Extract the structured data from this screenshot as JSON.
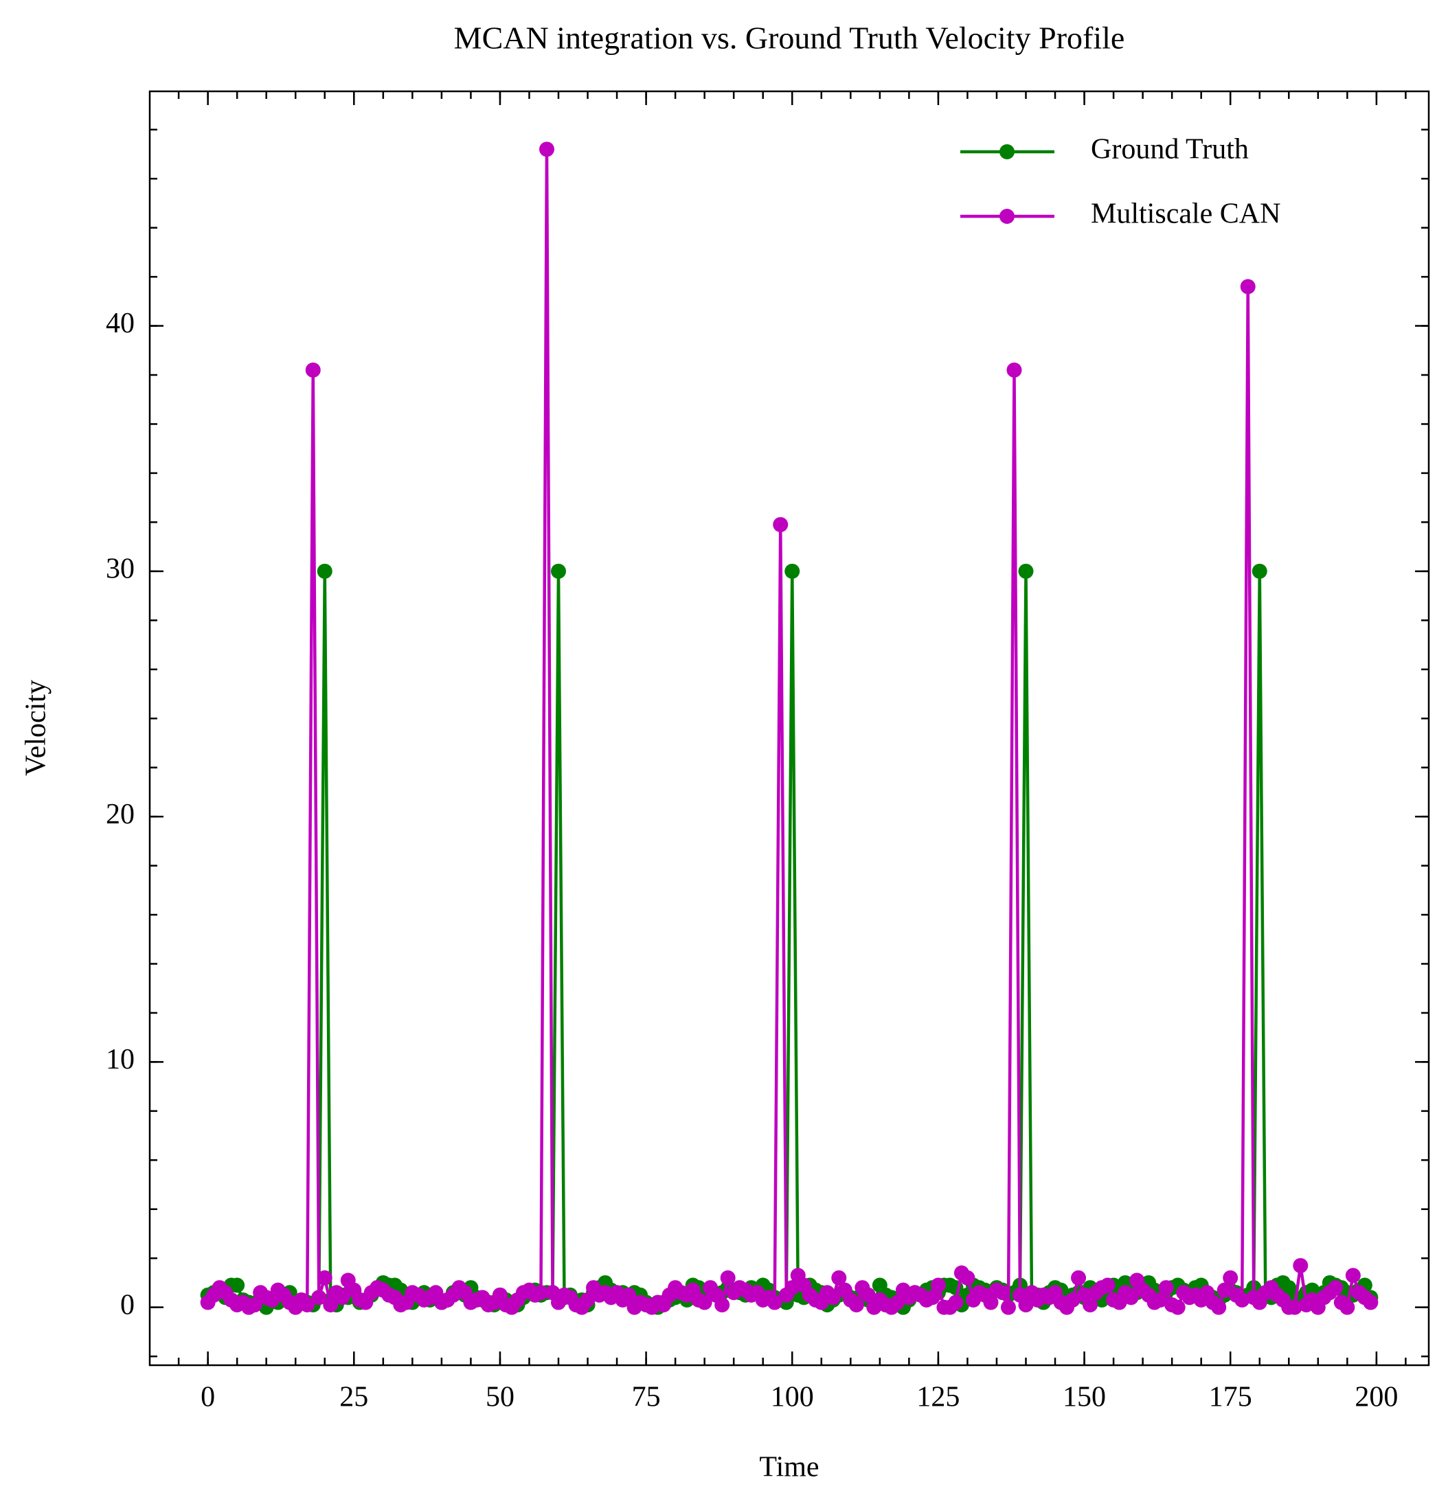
{
  "chart_data": {
    "type": "line",
    "title": "MCAN integration vs. Ground Truth Velocity Profile",
    "xlabel": "Time",
    "ylabel": "Velocity",
    "xlim": [
      -9.95,
      208.95
    ],
    "ylim": [
      -2.36,
      49.56
    ],
    "xticks": [
      0,
      25,
      50,
      75,
      100,
      125,
      150,
      175,
      200
    ],
    "yticks": [
      0,
      10,
      20,
      30,
      40
    ],
    "legend": "upper right",
    "x": [
      0,
      1,
      2,
      3,
      4,
      5,
      6,
      7,
      8,
      9,
      10,
      11,
      12,
      13,
      14,
      15,
      16,
      17,
      18,
      19,
      20,
      21,
      22,
      23,
      24,
      25,
      26,
      27,
      28,
      29,
      30,
      31,
      32,
      33,
      34,
      35,
      36,
      37,
      38,
      39,
      40,
      41,
      42,
      43,
      44,
      45,
      46,
      47,
      48,
      49,
      50,
      51,
      52,
      53,
      54,
      55,
      56,
      57,
      58,
      59,
      60,
      61,
      62,
      63,
      64,
      65,
      66,
      67,
      68,
      69,
      70,
      71,
      72,
      73,
      74,
      75,
      76,
      77,
      78,
      79,
      80,
      81,
      82,
      83,
      84,
      85,
      86,
      87,
      88,
      89,
      90,
      91,
      92,
      93,
      94,
      95,
      96,
      97,
      98,
      99,
      100,
      101,
      102,
      103,
      104,
      105,
      106,
      107,
      108,
      109,
      110,
      111,
      112,
      113,
      114,
      115,
      116,
      117,
      118,
      119,
      120,
      121,
      122,
      123,
      124,
      125,
      126,
      127,
      128,
      129,
      130,
      131,
      132,
      133,
      134,
      135,
      136,
      137,
      138,
      139,
      140,
      141,
      142,
      143,
      144,
      145,
      146,
      147,
      148,
      149,
      150,
      151,
      152,
      153,
      154,
      155,
      156,
      157,
      158,
      159,
      160,
      161,
      162,
      163,
      164,
      165,
      166,
      167,
      168,
      169,
      170,
      171,
      172,
      173,
      174,
      175,
      176,
      177,
      178,
      179,
      180,
      181,
      182,
      183,
      184,
      185,
      186,
      187,
      188,
      189,
      190,
      191,
      192,
      193,
      194,
      195,
      196,
      197,
      198,
      199
    ],
    "series": [
      {
        "name": "Ground Truth",
        "color": "#008000",
        "values": [
          0.5,
          0.6,
          0.7,
          0.4,
          0.9,
          0.9,
          0.3,
          0.2,
          0.1,
          0.4,
          0.0,
          0.3,
          0.2,
          0.5,
          0.6,
          0.1,
          0.3,
          0.2,
          0.1,
          0.4,
          30,
          0.3,
          0.1,
          0.5,
          0.4,
          0.6,
          0.2,
          0.3,
          0.5,
          0.8,
          1.0,
          0.9,
          0.9,
          0.7,
          0.4,
          0.2,
          0.5,
          0.6,
          0.3,
          0.4,
          0.2,
          0.3,
          0.6,
          0.7,
          0.5,
          0.8,
          0.4,
          0.3,
          0.2,
          0.1,
          0.5,
          0.3,
          0.2,
          0.1,
          0.4,
          0.6,
          0.7,
          0.5,
          0.6,
          0.6,
          30,
          0.4,
          0.5,
          0.2,
          0.3,
          0.1,
          0.6,
          0.8,
          1.0,
          0.7,
          0.5,
          0.6,
          0.4,
          0.6,
          0.5,
          0.2,
          0.1,
          0.0,
          0.2,
          0.3,
          0.4,
          0.5,
          0.3,
          0.9,
          0.8,
          0.6,
          0.7,
          0.5,
          0.6,
          0.8,
          0.7,
          0.6,
          0.5,
          0.8,
          0.6,
          0.9,
          0.7,
          0.4,
          0.3,
          0.2,
          30,
          0.5,
          0.4,
          0.9,
          0.7,
          0.6,
          0.1,
          0.3,
          0.5,
          0.7,
          0.4,
          0.2,
          0.6,
          0.3,
          0.1,
          0.9,
          0.5,
          0.4,
          0.2,
          0.0,
          0.3,
          0.6,
          0.5,
          0.7,
          0.8,
          0.6,
          0.9,
          0.9,
          0.8,
          0.1,
          0.5,
          0.9,
          0.8,
          0.7,
          0.6,
          0.8,
          0.7,
          0.5,
          0.6,
          0.9,
          30,
          0.4,
          0.5,
          0.2,
          0.6,
          0.8,
          0.7,
          0.3,
          0.5,
          0.6,
          0.4,
          0.8,
          0.5,
          0.3,
          0.6,
          0.9,
          0.7,
          1.0,
          0.8,
          0.6,
          0.9,
          1.0,
          0.7,
          0.5,
          0.6,
          0.8,
          0.9,
          0.7,
          0.6,
          0.8,
          0.9,
          0.5,
          0.4,
          0.3,
          0.5,
          0.7,
          0.6,
          0.4,
          0.5,
          0.8,
          30,
          0.6,
          0.4,
          0.9,
          1.0,
          0.8,
          0.4,
          0.3,
          0.6,
          0.7,
          0.5,
          0.6,
          1.0,
          0.9,
          0.8,
          0.6,
          0.5,
          0.7,
          0.9,
          0.4
        ]
      },
      {
        "name": "Multiscale CAN",
        "color": "#bf00bf",
        "values": [
          0.2,
          0.5,
          0.8,
          0.6,
          0.3,
          0.1,
          0.2,
          0.0,
          0.1,
          0.6,
          0.4,
          0.3,
          0.7,
          0.5,
          0.2,
          0.0,
          0.3,
          0.1,
          38.2,
          0.4,
          1.2,
          0.1,
          0.6,
          0.4,
          1.1,
          0.7,
          0.3,
          0.2,
          0.6,
          0.8,
          0.7,
          0.5,
          0.4,
          0.1,
          0.2,
          0.6,
          0.5,
          0.3,
          0.4,
          0.6,
          0.2,
          0.3,
          0.5,
          0.8,
          0.6,
          0.2,
          0.3,
          0.4,
          0.1,
          0.2,
          0.5,
          0.1,
          0.0,
          0.3,
          0.6,
          0.7,
          0.5,
          0.6,
          47.2,
          0.6,
          0.2,
          0.5,
          0.4,
          0.1,
          0.0,
          0.3,
          0.8,
          0.5,
          0.6,
          0.4,
          0.6,
          0.3,
          0.5,
          0.0,
          0.2,
          0.1,
          0.0,
          0.2,
          0.1,
          0.5,
          0.8,
          0.6,
          0.5,
          0.7,
          0.3,
          0.2,
          0.8,
          0.5,
          0.1,
          1.2,
          0.6,
          0.8,
          0.7,
          0.5,
          0.6,
          0.3,
          0.4,
          0.2,
          31.9,
          0.5,
          0.8,
          1.3,
          0.9,
          0.5,
          0.3,
          0.2,
          0.6,
          0.4,
          1.2,
          0.7,
          0.3,
          0.1,
          0.8,
          0.5,
          0.0,
          0.3,
          0.1,
          0.0,
          0.2,
          0.7,
          0.4,
          0.6,
          0.5,
          0.3,
          0.4,
          0.9,
          0.0,
          0.0,
          0.2,
          1.4,
          1.2,
          0.3,
          0.6,
          0.5,
          0.2,
          0.7,
          0.6,
          0.0,
          38.2,
          0.5,
          0.1,
          0.6,
          0.3,
          0.5,
          0.4,
          0.6,
          0.2,
          0.0,
          0.3,
          1.2,
          0.5,
          0.1,
          0.6,
          0.8,
          0.9,
          0.3,
          0.2,
          0.6,
          0.4,
          1.1,
          0.7,
          0.5,
          0.2,
          0.3,
          0.8,
          0.1,
          0.0,
          0.6,
          0.4,
          0.5,
          0.3,
          0.6,
          0.2,
          0.0,
          0.7,
          1.2,
          0.5,
          0.3,
          41.6,
          0.4,
          0.2,
          0.6,
          0.8,
          0.5,
          0.3,
          0.0,
          0.0,
          1.7,
          0.1,
          0.3,
          0.0,
          0.4,
          0.6,
          0.8,
          0.2,
          0.0,
          1.3,
          0.6,
          0.4,
          0.2
        ]
      }
    ]
  }
}
